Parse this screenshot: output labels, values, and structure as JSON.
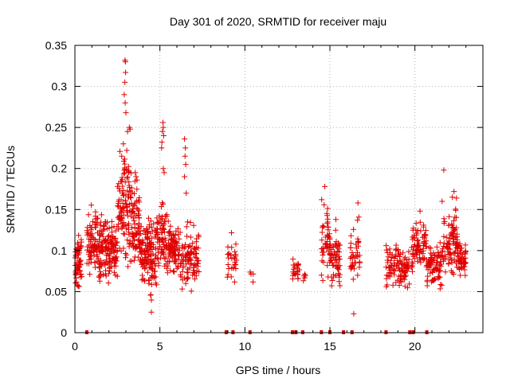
{
  "chart_data": {
    "type": "scatter",
    "title": "Day 301 of 2020, SRMTID for receiver maju",
    "xlabel": "GPS time / hours",
    "ylabel": "SRMTID / TECUs",
    "xlim": [
      0,
      24
    ],
    "ylim": [
      0,
      0.35
    ],
    "xticks": [
      "0",
      "5",
      "10",
      "15",
      "20"
    ],
    "yticks": [
      "0",
      "0.05",
      "0.1",
      "0.15",
      "0.2",
      "0.25",
      "0.3",
      "0.35"
    ],
    "grid": true,
    "marker": "+",
    "color": "#e00000",
    "clusters": [
      {
        "x_range": [
          0.0,
          0.4
        ],
        "y_range": [
          0.05,
          0.125
        ],
        "count": 60
      },
      {
        "x_range": [
          0.7,
          1.4
        ],
        "y_range": [
          0.055,
          0.165
        ],
        "count": 80
      },
      {
        "x_range": [
          1.4,
          2.0
        ],
        "y_range": [
          0.04,
          0.165
        ],
        "count": 90
      },
      {
        "x_range": [
          2.0,
          2.5
        ],
        "y_range": [
          0.05,
          0.145
        ],
        "count": 70
      },
      {
        "x_range": [
          2.5,
          3.3
        ],
        "y_range": [
          0.06,
          0.24
        ],
        "count": 110
      },
      {
        "x_range": [
          3.3,
          3.8
        ],
        "y_range": [
          0.07,
          0.2
        ],
        "count": 70
      },
      {
        "x_range": [
          3.8,
          4.3
        ],
        "y_range": [
          0.05,
          0.15
        ],
        "count": 70
      },
      {
        "x_range": [
          4.3,
          4.8
        ],
        "y_range": [
          0.025,
          0.16
        ],
        "count": 70
      },
      {
        "x_range": [
          4.8,
          5.5
        ],
        "y_range": [
          0.06,
          0.175
        ],
        "count": 80
      },
      {
        "x_range": [
          5.5,
          6.2
        ],
        "y_range": [
          0.06,
          0.145
        ],
        "count": 80
      },
      {
        "x_range": [
          6.2,
          7.3
        ],
        "y_range": [
          0.04,
          0.14
        ],
        "count": 100
      },
      {
        "x_range": [
          8.9,
          9.5
        ],
        "y_range": [
          0.045,
          0.13
        ],
        "count": 30
      },
      {
        "x_range": [
          10.3,
          10.5
        ],
        "y_range": [
          0.06,
          0.088
        ],
        "count": 4
      },
      {
        "x_range": [
          12.8,
          13.2
        ],
        "y_range": [
          0.055,
          0.095
        ],
        "count": 25
      },
      {
        "x_range": [
          13.4,
          13.6
        ],
        "y_range": [
          0.06,
          0.078
        ],
        "count": 5
      },
      {
        "x_range": [
          14.5,
          15.0
        ],
        "y_range": [
          0.05,
          0.175
        ],
        "count": 50
      },
      {
        "x_range": [
          15.0,
          15.6
        ],
        "y_range": [
          0.04,
          0.135
        ],
        "count": 60
      },
      {
        "x_range": [
          16.2,
          16.8
        ],
        "y_range": [
          0.04,
          0.158
        ],
        "count": 40
      },
      {
        "x_range": [
          18.3,
          19.2
        ],
        "y_range": [
          0.045,
          0.12
        ],
        "count": 70
      },
      {
        "x_range": [
          19.2,
          19.7
        ],
        "y_range": [
          0.04,
          0.11
        ],
        "count": 40
      },
      {
        "x_range": [
          19.8,
          20.7
        ],
        "y_range": [
          0.06,
          0.145
        ],
        "count": 80
      },
      {
        "x_range": [
          20.7,
          21.6
        ],
        "y_range": [
          0.04,
          0.12
        ],
        "count": 80
      },
      {
        "x_range": [
          21.6,
          22.5
        ],
        "y_range": [
          0.05,
          0.17
        ],
        "count": 90
      },
      {
        "x_range": [
          22.5,
          23.0
        ],
        "y_range": [
          0.06,
          0.12
        ],
        "count": 50
      }
    ],
    "outliers": [
      {
        "x": 2.95,
        "y": 0.332
      },
      {
        "x": 2.97,
        "y": 0.33
      },
      {
        "x": 2.98,
        "y": 0.317
      },
      {
        "x": 2.94,
        "y": 0.305
      },
      {
        "x": 2.9,
        "y": 0.29
      },
      {
        "x": 3.0,
        "y": 0.268
      },
      {
        "x": 2.96,
        "y": 0.28
      },
      {
        "x": 3.2,
        "y": 0.25
      },
      {
        "x": 3.25,
        "y": 0.248
      },
      {
        "x": 3.1,
        "y": 0.245
      },
      {
        "x": 2.85,
        "y": 0.23
      },
      {
        "x": 3.05,
        "y": 0.222
      },
      {
        "x": 2.75,
        "y": 0.215
      },
      {
        "x": 5.18,
        "y": 0.256
      },
      {
        "x": 5.2,
        "y": 0.25
      },
      {
        "x": 5.15,
        "y": 0.245
      },
      {
        "x": 5.22,
        "y": 0.24
      },
      {
        "x": 5.12,
        "y": 0.232
      },
      {
        "x": 5.1,
        "y": 0.225
      },
      {
        "x": 5.2,
        "y": 0.2
      },
      {
        "x": 5.25,
        "y": 0.195
      },
      {
        "x": 6.45,
        "y": 0.236
      },
      {
        "x": 6.5,
        "y": 0.225
      },
      {
        "x": 6.48,
        "y": 0.215
      },
      {
        "x": 6.52,
        "y": 0.205
      },
      {
        "x": 6.45,
        "y": 0.19
      },
      {
        "x": 6.55,
        "y": 0.17
      },
      {
        "x": 3.6,
        "y": 0.19
      },
      {
        "x": 3.65,
        "y": 0.186
      },
      {
        "x": 3.55,
        "y": 0.195
      },
      {
        "x": 21.7,
        "y": 0.198
      },
      {
        "x": 21.6,
        "y": 0.16
      },
      {
        "x": 22.3,
        "y": 0.172
      },
      {
        "x": 22.2,
        "y": 0.165
      },
      {
        "x": 20.3,
        "y": 0.148
      },
      {
        "x": 16.65,
        "y": 0.158
      },
      {
        "x": 14.7,
        "y": 0.178
      },
      {
        "x": 16.4,
        "y": 0.023
      },
      {
        "x": 4.5,
        "y": 0.025
      },
      {
        "x": 15.35,
        "y": 0.138
      }
    ],
    "zero_markers": [
      0.7,
      8.9,
      9.3,
      10.3,
      12.8,
      13.0,
      13.4,
      14.5,
      15.0,
      15.8,
      16.3,
      18.3,
      19.7,
      19.9,
      20.7
    ]
  }
}
